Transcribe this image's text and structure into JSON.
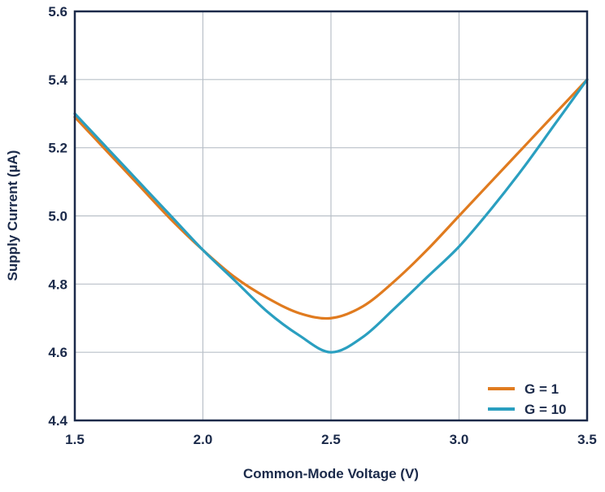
{
  "chart_data": {
    "type": "line",
    "title": "",
    "xlabel": "Common-Mode Voltage (V)",
    "ylabel": "Supply Current (µA)",
    "xlim": [
      1.5,
      3.5
    ],
    "ylim": [
      4.4,
      5.6
    ],
    "xticks": [
      1.5,
      2.0,
      2.5,
      3.0,
      3.5
    ],
    "xtick_labels": [
      "1.5",
      "2.0",
      "2.5",
      "3.0",
      "3.5"
    ],
    "yticks": [
      4.4,
      4.6,
      4.8,
      5.0,
      5.2,
      5.4,
      5.6
    ],
    "ytick_labels": [
      "4.4",
      "4.6",
      "4.8",
      "5.0",
      "5.2",
      "5.4",
      "5.6"
    ],
    "grid": true,
    "legend": "bottom-right",
    "x": [
      1.5,
      1.625,
      1.75,
      1.875,
      2.0,
      2.125,
      2.25,
      2.375,
      2.5,
      2.625,
      2.75,
      2.875,
      3.0,
      3.125,
      3.25,
      3.375,
      3.5
    ],
    "series": [
      {
        "name": "G = 1",
        "color": "#e07b1f",
        "values": [
          5.29,
          5.19,
          5.09,
          4.99,
          4.9,
          4.82,
          4.76,
          4.715,
          4.7,
          4.735,
          4.81,
          4.9,
          5.0,
          5.1,
          5.2,
          5.3,
          5.4
        ]
      },
      {
        "name": "G = 10",
        "color": "#2a9fc0",
        "values": [
          5.3,
          5.2,
          5.1,
          5.0,
          4.9,
          4.81,
          4.72,
          4.65,
          4.6,
          4.645,
          4.73,
          4.82,
          4.91,
          5.02,
          5.14,
          5.27,
          5.4
        ]
      }
    ]
  }
}
